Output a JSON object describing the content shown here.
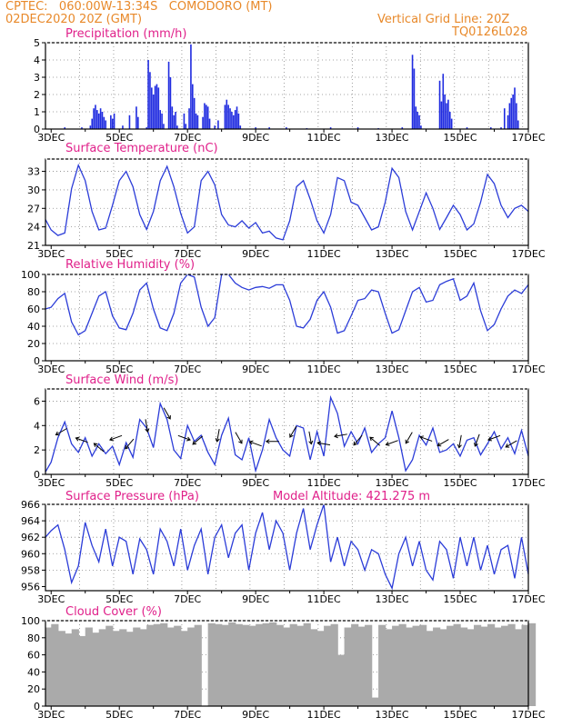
{
  "header": {
    "line1": "CPTEC:   060:00W-13:34S   COMODORO (MT)",
    "line2": "02DEC2020 20Z (GMT)",
    "grid_note": "Vertical Grid Line: 20Z",
    "run_id": "TQ0126L028"
  },
  "colors": {
    "line": "#2b3cd8",
    "bar": "#1f2be0",
    "cloud": "#aaaaaa",
    "title": "#e0208a",
    "header": "#e8892a",
    "arrow": "#000000"
  },
  "x_axis": {
    "date_labels": [
      "3DEC",
      "5DEC",
      "7DEC",
      "9DEC",
      "11DEC",
      "13DEC",
      "15DEC",
      "17DEC"
    ],
    "grid_every_days": 1,
    "range_days": [
      2.8333,
      17.0
    ]
  },
  "chart_data": [
    {
      "id": "precip",
      "type": "bar",
      "title": "Precipitation (mm/h)",
      "ylim": [
        0,
        5
      ],
      "yticks": [
        "0",
        "1",
        "2",
        "3",
        "4",
        "5"
      ],
      "x_units": "days since 2DEC2020 00Z",
      "x": [
        3.4,
        3.9,
        4.15,
        4.2,
        4.25,
        4.3,
        4.35,
        4.4,
        4.45,
        4.5,
        4.55,
        4.6,
        4.75,
        4.8,
        4.85,
        5.1,
        5.3,
        5.5,
        5.55,
        5.8,
        5.85,
        5.9,
        5.95,
        6.0,
        6.05,
        6.1,
        6.15,
        6.2,
        6.25,
        6.3,
        6.45,
        6.5,
        6.55,
        6.6,
        6.65,
        6.7,
        6.9,
        6.95,
        7.05,
        7.1,
        7.15,
        7.2,
        7.25,
        7.3,
        7.45,
        7.5,
        7.55,
        7.6,
        7.65,
        7.8,
        7.9,
        8.1,
        8.15,
        8.2,
        8.25,
        8.3,
        8.35,
        8.4,
        8.45,
        8.5,
        8.55,
        9.0,
        9.4,
        9.9,
        10.5,
        11.2,
        12.0,
        12.6,
        13.3,
        13.6,
        13.65,
        13.7,
        13.75,
        13.8,
        13.85,
        14.4,
        14.45,
        14.5,
        14.55,
        14.6,
        14.65,
        14.7,
        14.75,
        15.2,
        15.9,
        16.2,
        16.3,
        16.4,
        16.45,
        16.5,
        16.55,
        16.6,
        16.65,
        16.7
      ],
      "values": [
        0.1,
        0.1,
        0.2,
        0.6,
        1.2,
        1.4,
        1.1,
        0.9,
        1.2,
        1.0,
        0.7,
        0.5,
        0.8,
        0.6,
        0.9,
        0.2,
        0.8,
        1.3,
        0.7,
        0.1,
        4.0,
        3.3,
        2.4,
        2.0,
        2.5,
        2.6,
        2.4,
        1.1,
        0.9,
        0.3,
        3.9,
        3.0,
        1.3,
        0.8,
        1.0,
        0.2,
        0.9,
        0.3,
        1.2,
        4.9,
        2.6,
        1.8,
        0.9,
        0.8,
        0.7,
        1.5,
        1.4,
        1.3,
        0.6,
        0.2,
        0.5,
        1.4,
        1.7,
        1.4,
        1.2,
        1.0,
        0.8,
        1.1,
        1.3,
        0.9,
        0.2,
        0.1,
        0.1,
        0.1,
        0.05,
        0.1,
        0.1,
        0.05,
        0.1,
        4.3,
        3.5,
        1.3,
        1.0,
        0.8,
        0.2,
        2.8,
        1.6,
        3.2,
        2.0,
        1.5,
        1.7,
        1.0,
        0.6,
        0.1,
        0.1,
        0.1,
        1.2,
        0.8,
        1.5,
        1.8,
        2.0,
        2.4,
        1.5,
        0.5
      ]
    },
    {
      "id": "temp",
      "type": "line",
      "title": "Surface Temperature (nC)",
      "ylim": [
        21,
        35
      ],
      "yticks": [
        "21",
        "24",
        "27",
        "30",
        "33"
      ],
      "x": [
        2.833,
        3.0,
        3.2,
        3.4,
        3.6,
        3.8,
        4.0,
        4.2,
        4.4,
        4.6,
        4.8,
        5.0,
        5.2,
        5.4,
        5.6,
        5.8,
        6.0,
        6.2,
        6.4,
        6.6,
        6.8,
        7.0,
        7.2,
        7.4,
        7.6,
        7.8,
        8.0,
        8.2,
        8.4,
        8.6,
        8.8,
        9.0,
        9.2,
        9.4,
        9.6,
        9.8,
        10.0,
        10.2,
        10.4,
        10.6,
        10.8,
        11.0,
        11.2,
        11.4,
        11.6,
        11.8,
        12.0,
        12.2,
        12.4,
        12.6,
        12.8,
        13.0,
        13.2,
        13.4,
        13.6,
        13.8,
        14.0,
        14.2,
        14.4,
        14.6,
        14.8,
        15.0,
        15.2,
        15.4,
        15.6,
        15.8,
        16.0,
        16.2,
        16.4,
        16.6,
        16.8,
        17.0
      ],
      "values": [
        25.2,
        23.5,
        22.6,
        23.0,
        30.2,
        34.0,
        31.5,
        26.5,
        23.5,
        23.8,
        27.5,
        31.5,
        33.0,
        30.5,
        26.0,
        23.6,
        26.5,
        31.5,
        33.8,
        30.5,
        26.2,
        23.0,
        24.0,
        31.5,
        33.0,
        30.8,
        26.0,
        24.3,
        24.0,
        25.0,
        23.8,
        24.7,
        23.0,
        23.3,
        22.2,
        21.9,
        25.0,
        30.5,
        31.5,
        28.5,
        25.0,
        23.0,
        26.0,
        32.0,
        31.5,
        28.0,
        27.5,
        25.5,
        23.5,
        24.0,
        28.0,
        33.5,
        32.0,
        26.5,
        23.5,
        26.5,
        29.5,
        27.0,
        23.6,
        25.5,
        27.5,
        26.0,
        23.5,
        24.5,
        28.0,
        32.5,
        31.0,
        27.5,
        25.5,
        27.0,
        27.5,
        26.5
      ]
    },
    {
      "id": "rh",
      "type": "line",
      "title": "Relative Humidity (%)",
      "ylim": [
        0,
        100
      ],
      "yticks": [
        "0",
        "20",
        "40",
        "60",
        "80",
        "100"
      ],
      "x": [
        2.833,
        3.0,
        3.2,
        3.4,
        3.6,
        3.8,
        4.0,
        4.2,
        4.4,
        4.6,
        4.8,
        5.0,
        5.2,
        5.4,
        5.6,
        5.8,
        6.0,
        6.2,
        6.4,
        6.6,
        6.8,
        7.0,
        7.2,
        7.4,
        7.6,
        7.8,
        8.0,
        8.2,
        8.4,
        8.6,
        8.8,
        9.0,
        9.2,
        9.4,
        9.6,
        9.8,
        10.0,
        10.2,
        10.4,
        10.6,
        10.8,
        11.0,
        11.2,
        11.4,
        11.6,
        11.8,
        12.0,
        12.2,
        12.4,
        12.6,
        12.8,
        13.0,
        13.2,
        13.4,
        13.6,
        13.8,
        14.0,
        14.2,
        14.4,
        14.6,
        14.8,
        15.0,
        15.2,
        15.4,
        15.6,
        15.8,
        16.0,
        16.2,
        16.4,
        16.6,
        16.8,
        17.0
      ],
      "values": [
        60,
        62,
        72,
        78,
        45,
        30,
        35,
        55,
        75,
        80,
        52,
        38,
        36,
        55,
        82,
        90,
        60,
        38,
        35,
        55,
        90,
        100,
        97,
        62,
        40,
        50,
        100,
        100,
        90,
        85,
        82,
        85,
        86,
        84,
        88,
        88,
        70,
        40,
        38,
        48,
        70,
        80,
        62,
        32,
        35,
        52,
        70,
        72,
        82,
        80,
        55,
        32,
        36,
        58,
        80,
        85,
        68,
        70,
        88,
        92,
        95,
        70,
        75,
        90,
        58,
        35,
        42,
        60,
        75,
        82,
        78,
        88
      ]
    },
    {
      "id": "wind",
      "type": "line",
      "title": "Surface Wind (m/s)",
      "ylim": [
        0,
        7
      ],
      "yticks": [
        "0",
        "2",
        "4",
        "6"
      ],
      "x": [
        2.833,
        3.0,
        3.2,
        3.4,
        3.6,
        3.8,
        4.0,
        4.2,
        4.4,
        4.6,
        4.8,
        5.0,
        5.2,
        5.4,
        5.6,
        5.8,
        6.0,
        6.2,
        6.4,
        6.6,
        6.8,
        7.0,
        7.2,
        7.4,
        7.6,
        7.8,
        8.0,
        8.2,
        8.4,
        8.6,
        8.8,
        9.0,
        9.2,
        9.4,
        9.6,
        9.8,
        10.0,
        10.2,
        10.4,
        10.6,
        10.8,
        11.0,
        11.2,
        11.4,
        11.6,
        11.8,
        12.0,
        12.2,
        12.4,
        12.6,
        12.8,
        13.0,
        13.2,
        13.4,
        13.6,
        13.8,
        14.0,
        14.2,
        14.4,
        14.6,
        14.8,
        15.0,
        15.2,
        15.4,
        15.6,
        15.8,
        16.0,
        16.2,
        16.4,
        16.6,
        16.8,
        17.0
      ],
      "values": [
        0.2,
        1.0,
        3.0,
        4.3,
        2.5,
        1.8,
        3.0,
        1.5,
        2.5,
        1.7,
        2.3,
        0.8,
        2.6,
        1.4,
        4.5,
        3.8,
        2.2,
        5.8,
        4.5,
        2.0,
        1.3,
        4.0,
        2.7,
        3.2,
        1.8,
        0.8,
        3.2,
        4.6,
        1.6,
        1.2,
        3.0,
        0.3,
        2.0,
        4.5,
        3.0,
        2.0,
        1.5,
        4.0,
        3.8,
        1.2,
        3.5,
        1.5,
        6.3,
        5.0,
        2.3,
        3.5,
        2.5,
        3.8,
        1.8,
        2.5,
        3.0,
        5.2,
        3.0,
        0.3,
        1.2,
        3.2,
        2.4,
        3.8,
        1.8,
        2.0,
        2.5,
        1.5,
        2.8,
        3.0,
        1.6,
        2.5,
        3.5,
        2.1,
        3.0,
        1.7,
        3.6,
        1.5
      ],
      "arrows": {
        "x": [
          3.3,
          3.9,
          4.4,
          4.9,
          5.3,
          5.8,
          6.4,
          6.9,
          7.3,
          7.9,
          8.5,
          9.0,
          9.5,
          10.1,
          10.6,
          11.0,
          11.5,
          12.0,
          12.5,
          13.0,
          13.5,
          14.0,
          14.5,
          15.0,
          15.5,
          16.0,
          16.5
        ],
        "speed": [
          3.5,
          2.8,
          2.2,
          3.0,
          2.5,
          4.0,
          5.0,
          3.0,
          2.8,
          3.2,
          3.0,
          2.5,
          2.7,
          3.5,
          3.0,
          2.5,
          3.2,
          2.8,
          2.7,
          2.6,
          3.0,
          2.9,
          2.6,
          2.7,
          2.8,
          3.0,
          2.5
        ],
        "dir_deg": [
          150,
          200,
          220,
          160,
          130,
          80,
          60,
          20,
          140,
          100,
          60,
          200,
          180,
          120,
          80,
          190,
          170,
          130,
          220,
          160,
          120,
          200,
          150,
          100,
          110,
          160,
          150
        ]
      }
    },
    {
      "id": "pressure",
      "type": "line",
      "title": "Surface Pressure (hPa)",
      "subtitle": "Model Altitude: 421.275 m",
      "ylim": [
        955.5,
        966
      ],
      "yticks": [
        "956",
        "958",
        "960",
        "962",
        "964",
        "966"
      ],
      "x": [
        2.833,
        3.0,
        3.2,
        3.4,
        3.6,
        3.8,
        4.0,
        4.2,
        4.4,
        4.6,
        4.8,
        5.0,
        5.2,
        5.4,
        5.6,
        5.8,
        6.0,
        6.2,
        6.4,
        6.6,
        6.8,
        7.0,
        7.2,
        7.4,
        7.6,
        7.8,
        8.0,
        8.2,
        8.4,
        8.6,
        8.8,
        9.0,
        9.2,
        9.4,
        9.6,
        9.8,
        10.0,
        10.2,
        10.4,
        10.6,
        10.8,
        11.0,
        11.2,
        11.4,
        11.6,
        11.8,
        12.0,
        12.2,
        12.4,
        12.6,
        12.8,
        13.0,
        13.2,
        13.4,
        13.6,
        13.8,
        14.0,
        14.2,
        14.4,
        14.6,
        14.8,
        15.0,
        15.2,
        15.4,
        15.6,
        15.8,
        16.0,
        16.2,
        16.4,
        16.6,
        16.8,
        17.0
      ],
      "values": [
        962.0,
        962.8,
        963.5,
        960.5,
        956.5,
        958.5,
        963.8,
        961.0,
        959.0,
        963.0,
        958.5,
        962.0,
        961.5,
        957.5,
        961.8,
        960.5,
        957.5,
        963.0,
        961.5,
        958.5,
        963.0,
        958.0,
        961.0,
        963.0,
        957.5,
        962.0,
        963.5,
        959.5,
        962.5,
        963.5,
        958.0,
        962.5,
        965.0,
        960.5,
        964.0,
        962.5,
        958.0,
        962.5,
        965.5,
        960.5,
        963.5,
        966.0,
        959.0,
        962.0,
        958.5,
        961.5,
        960.5,
        958.0,
        960.5,
        960.0,
        957.5,
        955.8,
        960.0,
        962.0,
        958.5,
        961.5,
        958.0,
        956.8,
        961.5,
        960.5,
        957.0,
        962.0,
        958.5,
        962.0,
        958.0,
        961.0,
        957.5,
        960.5,
        961.0,
        957.0,
        962.0,
        957.5
      ]
    },
    {
      "id": "cloud",
      "type": "area",
      "title": "Cloud Cover (%)",
      "ylim": [
        0,
        100
      ],
      "yticks": [
        "0",
        "20",
        "40",
        "60",
        "80",
        "100"
      ],
      "x": [
        2.833,
        3.0,
        3.2,
        3.4,
        3.6,
        3.8,
        4.0,
        4.2,
        4.4,
        4.6,
        4.8,
        5.0,
        5.2,
        5.4,
        5.6,
        5.8,
        6.0,
        6.2,
        6.4,
        6.6,
        6.8,
        7.0,
        7.2,
        7.4,
        7.6,
        7.8,
        8.0,
        8.2,
        8.4,
        8.6,
        8.8,
        9.0,
        9.2,
        9.4,
        9.6,
        9.8,
        10.0,
        10.2,
        10.4,
        10.6,
        10.8,
        11.0,
        11.2,
        11.4,
        11.6,
        11.8,
        12.0,
        12.2,
        12.4,
        12.6,
        12.8,
        13.0,
        13.2,
        13.4,
        13.6,
        13.8,
        14.0,
        14.2,
        14.4,
        14.6,
        14.8,
        15.0,
        15.2,
        15.4,
        15.6,
        15.8,
        16.0,
        16.2,
        16.4,
        16.6,
        16.8,
        17.0
      ],
      "values": [
        92,
        96,
        88,
        85,
        90,
        82,
        92,
        86,
        90,
        94,
        88,
        90,
        87,
        92,
        90,
        95,
        96,
        97,
        92,
        94,
        88,
        92,
        95,
        0,
        97,
        96,
        95,
        98,
        96,
        95,
        94,
        96,
        97,
        98,
        95,
        92,
        96,
        94,
        97,
        90,
        88,
        94,
        96,
        60,
        92,
        96,
        93,
        95,
        10,
        95,
        90,
        94,
        96,
        92,
        94,
        95,
        88,
        92,
        90,
        94,
        96,
        92,
        90,
        95,
        93,
        96,
        92,
        94,
        96,
        90,
        95,
        97
      ]
    }
  ]
}
